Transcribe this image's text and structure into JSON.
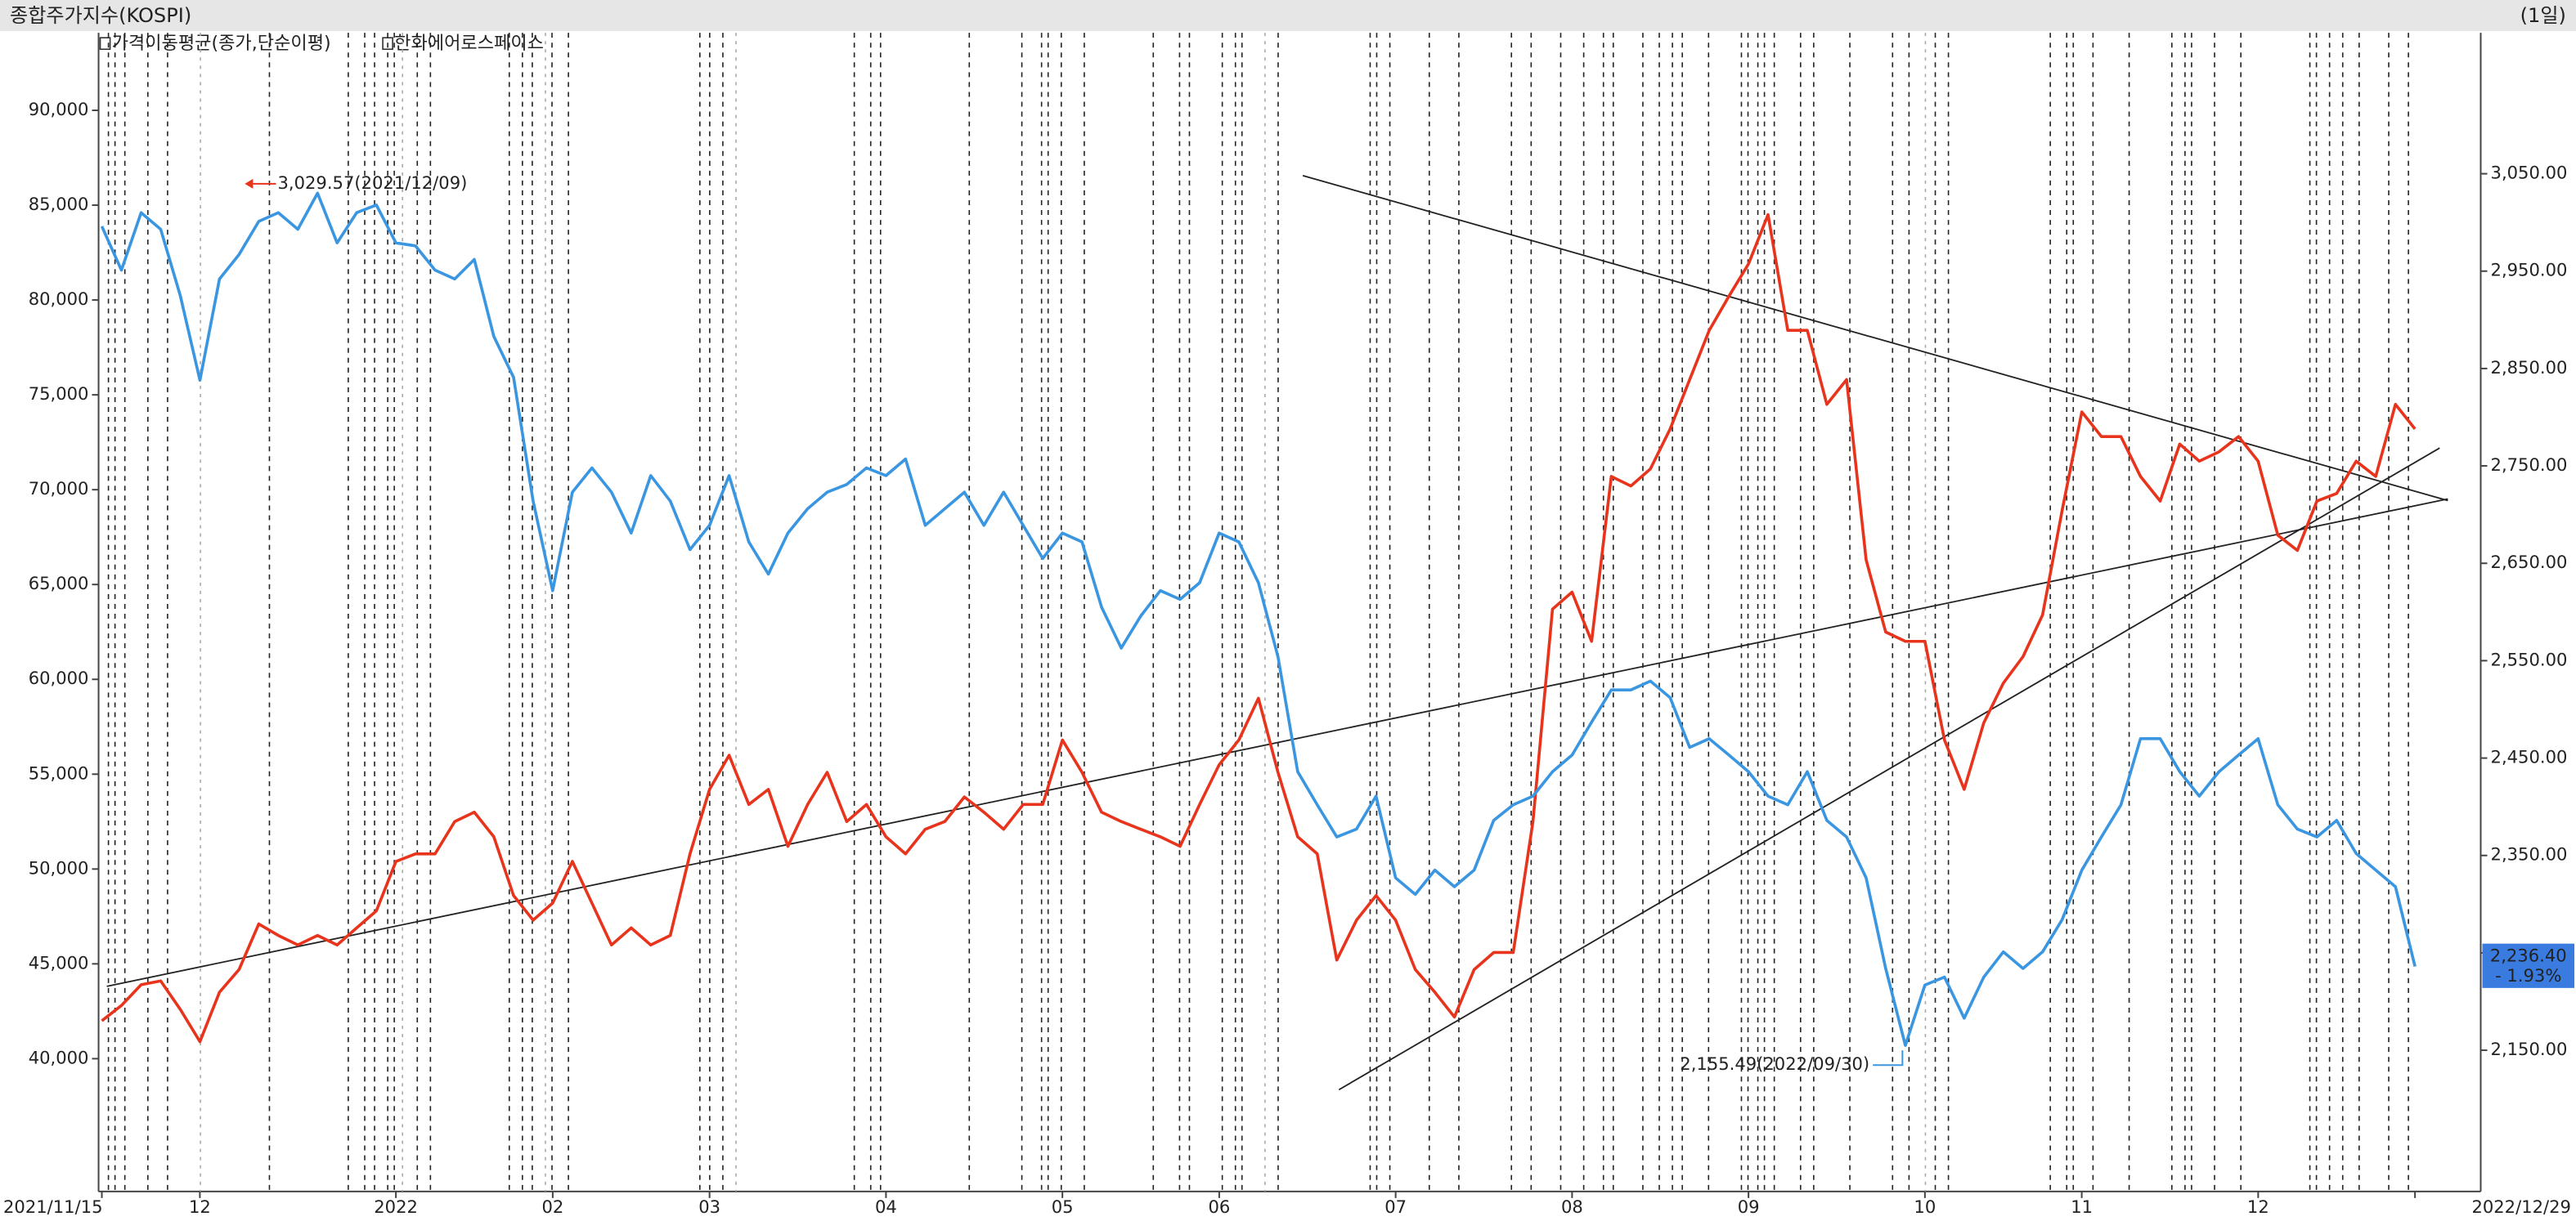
{
  "chart_data": {
    "type": "line",
    "title": "종합주가지수(KOSPI)",
    "period": "(1일)",
    "indicator": "가격이동평균(종가,단순이평)",
    "categories": [
      "2021/11/15",
      null,
      null,
      null,
      null,
      "12",
      null,
      null,
      null,
      null,
      null,
      null,
      null,
      null,
      null,
      "2022",
      null,
      null,
      null,
      null,
      null,
      null,
      null,
      "02",
      null,
      null,
      null,
      null,
      null,
      null,
      null,
      "03",
      null,
      null,
      null,
      null,
      null,
      null,
      null,
      null,
      "04",
      null,
      null,
      null,
      null,
      null,
      null,
      null,
      null,
      "05",
      null,
      null,
      null,
      null,
      null,
      null,
      null,
      "06",
      null,
      null,
      null,
      null,
      null,
      null,
      null,
      null,
      "07",
      null,
      null,
      null,
      null,
      null,
      null,
      null,
      null,
      "08",
      null,
      null,
      null,
      null,
      null,
      null,
      null,
      null,
      "09",
      null,
      null,
      null,
      null,
      null,
      null,
      null,
      null,
      "10",
      null,
      null,
      null,
      null,
      null,
      null,
      null,
      "11",
      null,
      null,
      null,
      null,
      null,
      null,
      null,
      null,
      "12",
      null,
      null,
      null,
      null,
      null,
      null,
      null,
      "2022/12/29"
    ],
    "series": [
      {
        "name": "한화에어로스페이스",
        "color": "#e8341c",
        "axis": "y",
        "values": [
          42000,
          42800,
          43900,
          44100,
          42600,
          40900,
          43500,
          44700,
          47100,
          46500,
          46000,
          46500,
          46000,
          46900,
          47800,
          50400,
          50800,
          50800,
          52500,
          53000,
          51700,
          48600,
          47300,
          48200,
          50400,
          48200,
          46000,
          46900,
          46000,
          46500,
          50800,
          54200,
          56000,
          53400,
          54200,
          51200,
          53400,
          55100,
          52500,
          53400,
          51700,
          50800,
          52100,
          52500,
          53800,
          53000,
          52100,
          53400,
          53400,
          56800,
          55100,
          53000,
          52500,
          52100,
          51700,
          51200,
          53400,
          55500,
          56800,
          59000,
          55100,
          51700,
          50800,
          45200,
          47300,
          48600,
          47300,
          44700,
          43500,
          42200,
          44700,
          45600,
          45600,
          52500,
          63700,
          64600,
          62000,
          70700,
          70200,
          71100,
          73200,
          75800,
          78400,
          80200,
          81900,
          84500,
          78400,
          78400,
          74500,
          75800,
          66300,
          62500,
          62000,
          62000,
          56800,
          54200,
          57700,
          59800,
          61200,
          63400,
          68900,
          74100,
          72800,
          72800,
          70700,
          69400,
          72400,
          71500,
          72000,
          72800,
          71500,
          67600,
          66800,
          69400,
          69800,
          71500,
          70700,
          74500,
          73200
        ]
      },
      {
        "color": "#3a96e0",
        "axis": "y2",
        "values": [
          2996,
          2951,
          3010,
          2993,
          2925,
          2838,
          2942,
          2967,
          3001,
          3010,
          2993,
          3030,
          2979,
          3010,
          3018,
          2979,
          2976,
          2951,
          2942,
          2962,
          2883,
          2841,
          2714,
          2622,
          2723,
          2748,
          2723,
          2681,
          2740,
          2714,
          2664,
          2689,
          2740,
          2672,
          2639,
          2681,
          2706,
          2723,
          2731,
          2748,
          2740,
          2757,
          2689,
          2706,
          2723,
          2689,
          2723,
          2689,
          2655,
          2681,
          2672,
          2605,
          2563,
          2596,
          2622,
          2613,
          2630,
          2681,
          2672,
          2630,
          2554,
          2436,
          2402,
          2369,
          2377,
          2411,
          2327,
          2310,
          2335,
          2318,
          2335,
          2386,
          2402,
          2411,
          2436,
          2453,
          2487,
          2520,
          2520,
          2529,
          2512,
          2461,
          2470,
          2453,
          2436,
          2411,
          2402,
          2436,
          2386,
          2369,
          2327,
          2234,
          2155,
          2217,
          2225,
          2183,
          2225,
          2251,
          2234,
          2251,
          2284,
          2335,
          2369,
          2402,
          2470,
          2470,
          2436,
          2411,
          2436,
          2453,
          2470,
          2402,
          2377,
          2369,
          2386,
          2352,
          2335,
          2318,
          2236
        ]
      }
    ],
    "ylim": [
      33000,
      94000
    ],
    "yticks": [
      {
        "value": 40000,
        "label": "40,000"
      },
      {
        "value": 45000,
        "label": "45,000"
      },
      {
        "value": 50000,
        "label": "50,000"
      },
      {
        "value": 55000,
        "label": "55,000"
      },
      {
        "value": 60000,
        "label": "60,000"
      },
      {
        "value": 65000,
        "label": "65,000"
      },
      {
        "value": 70000,
        "label": "70,000"
      },
      {
        "value": 75000,
        "label": "75,000"
      },
      {
        "value": 80000,
        "label": "80,000"
      },
      {
        "value": 85000,
        "label": "85,000"
      },
      {
        "value": 90000,
        "label": "90,000"
      }
    ],
    "y2lim": [
      2005,
      3193
    ],
    "y2ticks": [
      {
        "value": 2150,
        "label": "2,150.00"
      },
      {
        "value": 2250,
        "label": "2,250.00"
      },
      {
        "value": 2350,
        "label": "2,350.00"
      },
      {
        "value": 2450,
        "label": "2,450.00"
      },
      {
        "value": 2550,
        "label": "2,550.00"
      },
      {
        "value": 2650,
        "label": "2,650.00"
      },
      {
        "value": 2750,
        "label": "2,750.00"
      },
      {
        "value": 2850,
        "label": "2,850.00"
      },
      {
        "value": 2950,
        "label": "2,950.00"
      },
      {
        "value": 3050,
        "label": "3,050.00"
      }
    ],
    "annotations": [
      {
        "text": "3,029.57(2021/12/09)",
        "color": "#e8341c"
      },
      {
        "text": "2,155.49(2022/09/30)",
        "color": "#3a96e0"
      }
    ],
    "current": {
      "value": "2,236.40",
      "change": "- 1.93%",
      "color": "#3a7be0"
    }
  }
}
